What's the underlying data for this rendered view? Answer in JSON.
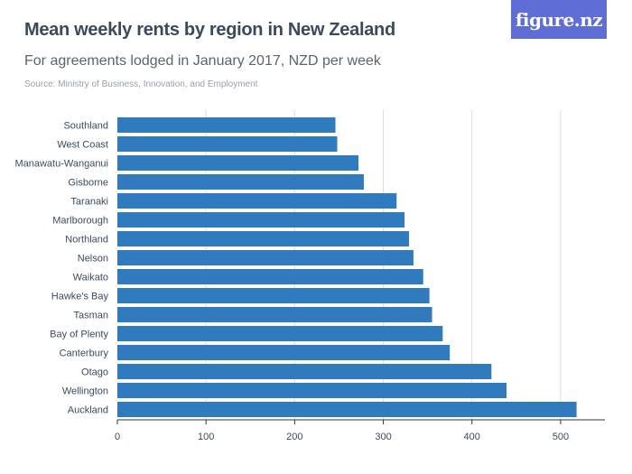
{
  "header": {
    "title": "Mean weekly rents by region in New Zealand",
    "subtitle": "For agreements lodged in January 2017, NZD per week",
    "source": "Source: Ministry of Business, Innovation, and Employment",
    "logo_text": "figure.nz"
  },
  "colors": {
    "bar": "#2f7bbd",
    "grid": "#dcdcdc",
    "axis": "#333333",
    "logo_bg": "#5e6ed6"
  },
  "chart_data": {
    "type": "bar",
    "orientation": "horizontal",
    "categories": [
      "Southland",
      "West Coast",
      "Manawatu-Wanganui",
      "Gisborne",
      "Taranaki",
      "Marlborough",
      "Northland",
      "Nelson",
      "Waikato",
      "Hawke's Bay",
      "Tasman",
      "Bay of Plenty",
      "Canterbury",
      "Otago",
      "Wellington",
      "Auckland"
    ],
    "values": [
      246,
      248,
      272,
      278,
      315,
      324,
      329,
      334,
      345,
      352,
      355,
      367,
      375,
      422,
      439,
      518
    ],
    "xlim": [
      0,
      550
    ],
    "xticks": [
      0,
      100,
      200,
      300,
      400,
      500
    ],
    "grid": true
  }
}
